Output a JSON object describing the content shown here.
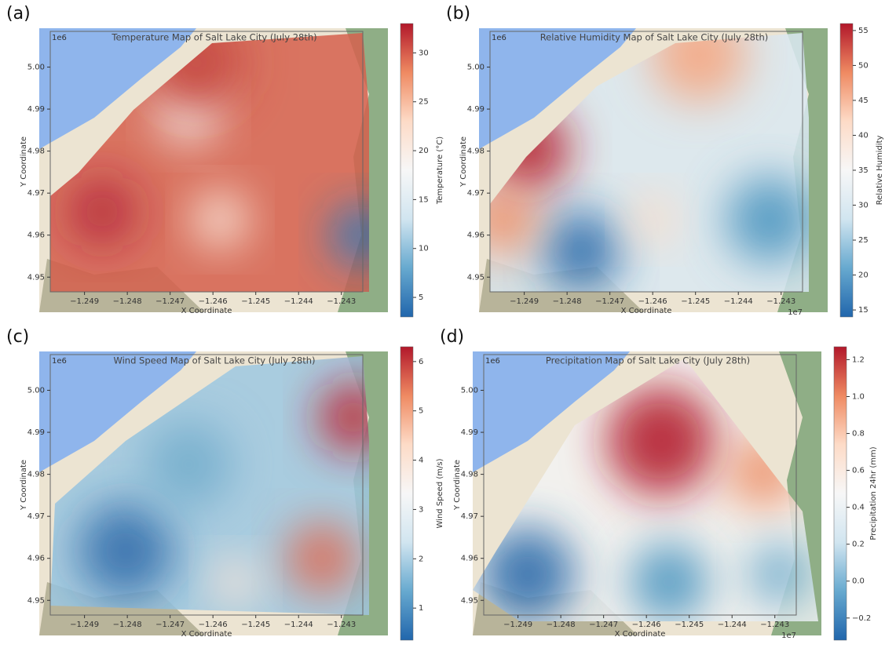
{
  "chart_data": [
    {
      "type": "heatmap",
      "label": "(a)",
      "title": "Temperature Map of Salt Lake City (July 28th)",
      "xlabel": "X Coordinate",
      "ylabel": "Y Coordinate",
      "y_offset": "1e6",
      "colorbar_label": "Temperature (°C)",
      "colormap": "RdBu_r",
      "xlim": [
        -1.2498,
        -1.2425
      ],
      "ylim": [
        4.9465,
        5.0085
      ],
      "xticks": [
        {
          "value": -1.249,
          "label": "−1.249"
        },
        {
          "value": -1.248,
          "label": "−1.248"
        },
        {
          "value": -1.247,
          "label": "−1.247"
        },
        {
          "value": -1.246,
          "label": "−1.246"
        },
        {
          "value": -1.245,
          "label": "−1.245"
        },
        {
          "value": -1.244,
          "label": "−1.244"
        },
        {
          "value": -1.243,
          "label": "−1.243"
        }
      ],
      "yticks": [
        4.95,
        4.96,
        4.97,
        4.98,
        4.99,
        {
          "value": 5,
          "label": "5.00"
        }
      ],
      "clim": [
        3,
        33
      ],
      "cticks": [
        5,
        10,
        15,
        20,
        25,
        30
      ]
    },
    {
      "type": "heatmap",
      "label": "(b)",
      "title": "Relative Humidity Map of Salt Lake City (July 28th)",
      "xlabel": "X Coordinate",
      "ylabel": "Y Coordinate",
      "y_offset": "1e6",
      "x_offset": "1e7",
      "colorbar_label": "Relative Humidity",
      "colormap": "RdBu_r",
      "xlim": [
        -1.2498,
        -1.2425
      ],
      "ylim": [
        4.9465,
        5.0085
      ],
      "xticks": [
        {
          "value": -1.249,
          "label": "−1.249"
        },
        {
          "value": -1.248,
          "label": "−1.248"
        },
        {
          "value": -1.247,
          "label": "−1.247"
        },
        {
          "value": -1.246,
          "label": "−1.246"
        },
        {
          "value": -1.245,
          "label": "−1.245"
        },
        {
          "value": -1.244,
          "label": "−1.244"
        },
        {
          "value": -1.243,
          "label": "−1.243"
        }
      ],
      "yticks": [
        4.95,
        4.96,
        4.97,
        4.98,
        4.99,
        {
          "value": 5,
          "label": "5.00"
        }
      ],
      "clim": [
        14,
        56
      ],
      "cticks": [
        15,
        20,
        25,
        30,
        35,
        40,
        45,
        50,
        55
      ]
    },
    {
      "type": "heatmap",
      "label": "(c)",
      "title": "Wind Speed Map of Salt Lake City (July 28th)",
      "xlabel": "X Coordinate",
      "ylabel": "Y Coordinate",
      "y_offset": "1e6",
      "colorbar_label": "Wind Speed (m/s)",
      "colormap": "RdBu_r",
      "xlim": [
        -1.2498,
        -1.2425
      ],
      "ylim": [
        4.9465,
        5.0085
      ],
      "xticks": [
        {
          "value": -1.249,
          "label": "−1.249"
        },
        {
          "value": -1.248,
          "label": "−1.248"
        },
        {
          "value": -1.247,
          "label": "−1.247"
        },
        {
          "value": -1.246,
          "label": "−1.246"
        },
        {
          "value": -1.245,
          "label": "−1.245"
        },
        {
          "value": -1.244,
          "label": "−1.244"
        },
        {
          "value": -1.243,
          "label": "−1.243"
        }
      ],
      "yticks": [
        4.95,
        4.96,
        4.97,
        4.98,
        4.99,
        {
          "value": 5,
          "label": "5.00"
        }
      ],
      "clim": [
        0.35,
        6.3
      ],
      "cticks": [
        1,
        2,
        3,
        4,
        5,
        6
      ]
    },
    {
      "type": "heatmap",
      "label": "(d)",
      "title": "Precipitation Map of Salt Lake City (July 28th)",
      "xlabel": "X Coordinate",
      "ylabel": "Y Coordinate",
      "y_offset": "1e6",
      "x_offset": "1e7",
      "colorbar_label": "Precipitation 24hr (mm)",
      "colormap": "RdBu_r",
      "xlim": [
        -1.2498,
        -1.2425
      ],
      "ylim": [
        4.9465,
        5.0085
      ],
      "xticks": [
        {
          "value": -1.249,
          "label": "−1.249"
        },
        {
          "value": -1.248,
          "label": "−1.248"
        },
        {
          "value": -1.247,
          "label": "−1.247"
        },
        {
          "value": -1.246,
          "label": "−1.246"
        },
        {
          "value": -1.245,
          "label": "−1.245"
        },
        {
          "value": -1.244,
          "label": "−1.244"
        },
        {
          "value": -1.243,
          "label": "−1.243"
        }
      ],
      "yticks": [
        4.95,
        4.96,
        4.97,
        4.98,
        4.99,
        {
          "value": 5,
          "label": "5.00"
        }
      ],
      "clim": [
        -0.32,
        1.27
      ],
      "cticks": [
        {
          "value": -0.2,
          "label": "−0.2"
        },
        {
          "value": 0,
          "label": "0.0"
        },
        0.2,
        0.4,
        0.6,
        0.8,
        {
          "value": 1,
          "label": "1.0"
        },
        1.2
      ]
    }
  ]
}
